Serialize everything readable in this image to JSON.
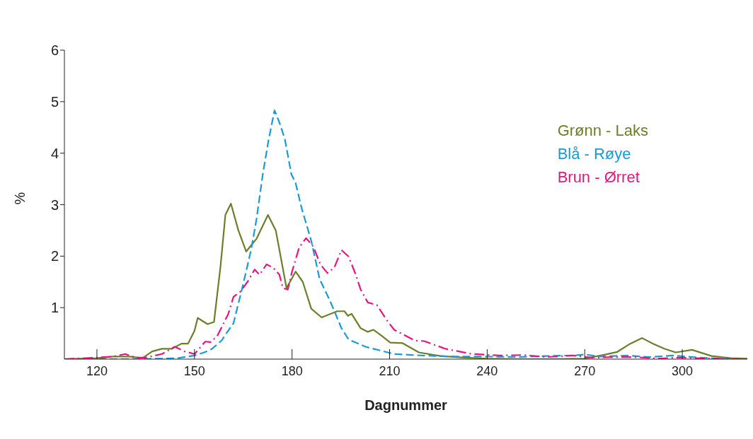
{
  "chart_data": {
    "type": "line",
    "xlabel": "Dagnummer",
    "ylabel": "%",
    "xlim": [
      110,
      320
    ],
    "xticks": [
      120,
      150,
      180,
      210,
      240,
      270,
      300
    ],
    "ylim": [
      0,
      6
    ],
    "yticks": [
      1,
      2,
      3,
      4,
      5,
      6
    ],
    "grid": false,
    "legend": "top right",
    "marker": "none",
    "series": [
      {
        "name": "Grønn - Laks",
        "color": "#6b7f2a",
        "line_style": "solid",
        "x": [
          110,
          120,
          125,
          130,
          134,
          137,
          140,
          143,
          146,
          148,
          150,
          151,
          154,
          156,
          158,
          159.5,
          161.2,
          163.5,
          165.9,
          169.1,
          172.6,
          175,
          178.3,
          181.1,
          183.3,
          185.9,
          189.1,
          193.9,
          196.1,
          197.2,
          198.3,
          201.1,
          203.3,
          205,
          207.6,
          210.2,
          214,
          219,
          225.6,
          233,
          240,
          250,
          260,
          270,
          276.5,
          280,
          284,
          287.6,
          291,
          294.6,
          298,
          303,
          309,
          315,
          320
        ],
        "values": [
          0,
          0.02,
          0.05,
          0.05,
          0.02,
          0.15,
          0.2,
          0.2,
          0.3,
          0.3,
          0.55,
          0.8,
          0.68,
          0.72,
          1.8,
          2.8,
          3.02,
          2.5,
          2.09,
          2.34,
          2.8,
          2.5,
          1.38,
          1.7,
          1.5,
          0.98,
          0.81,
          0.93,
          0.93,
          0.84,
          0.88,
          0.6,
          0.53,
          0.57,
          0.45,
          0.32,
          0.31,
          0.13,
          0.06,
          0.03,
          0.01,
          0,
          0,
          0.01,
          0.09,
          0.14,
          0.3,
          0.41,
          0.3,
          0.2,
          0.13,
          0.18,
          0.06,
          0.02,
          0.01
        ]
      },
      {
        "name": "Blå - Røye",
        "color": "#1a9ad6",
        "line_style": "dashed",
        "x": [
          110,
          120,
          130,
          140,
          145,
          150,
          153,
          155.4,
          158.3,
          162,
          164.8,
          167.4,
          169.1,
          171,
          172.8,
          174.6,
          176.1,
          177.8,
          179.8,
          181.1,
          183,
          185.9,
          188.5,
          191.7,
          195.2,
          197.4,
          202.6,
          211.3,
          220,
          230,
          240,
          250,
          258,
          266.3,
          270,
          275,
          283,
          290,
          297,
          305,
          315,
          320
        ],
        "values": [
          0,
          0,
          0,
          0.01,
          0.02,
          0.07,
          0.13,
          0.2,
          0.36,
          0.7,
          1.41,
          2.12,
          2.73,
          3.59,
          4.26,
          4.83,
          4.6,
          4.27,
          3.59,
          3.42,
          2.92,
          2.3,
          1.55,
          1.13,
          0.6,
          0.38,
          0.24,
          0.1,
          0.07,
          0.05,
          0.05,
          0.04,
          0.06,
          0.07,
          0.09,
          0.05,
          0.07,
          0.04,
          0.07,
          0.03,
          0,
          0
        ]
      },
      {
        "name": "Brun - Ørret",
        "color": "#e6157f",
        "line_style": "dashdot",
        "x": [
          110,
          120,
          125,
          128.7,
          132,
          135,
          140,
          143.9,
          147,
          150,
          153.3,
          155,
          157,
          160.4,
          162,
          164.1,
          166.3,
          168.5,
          170,
          172.2,
          174.3,
          176.1,
          177.2,
          178.7,
          180,
          182.2,
          184.3,
          186.5,
          188.7,
          190.9,
          193,
          195.2,
          197.4,
          199.6,
          201.1,
          203.3,
          206.1,
          209.1,
          211.4,
          217.8,
          220.6,
          227.2,
          235.2,
          243.9,
          251,
          258.3,
          266.3,
          272,
          280,
          285.6,
          292.8,
          298,
          309,
          320
        ],
        "values": [
          0,
          0.03,
          0.05,
          0.1,
          0.03,
          0.03,
          0.1,
          0.24,
          0.15,
          0.1,
          0.34,
          0.33,
          0.45,
          0.88,
          1.21,
          1.31,
          1.5,
          1.74,
          1.64,
          1.84,
          1.77,
          1.64,
          1.38,
          1.35,
          1.7,
          2.17,
          2.35,
          2.19,
          1.84,
          1.67,
          1.78,
          2.12,
          1.99,
          1.64,
          1.35,
          1.1,
          1.05,
          0.76,
          0.57,
          0.36,
          0.35,
          0.2,
          0.1,
          0.07,
          0.08,
          0.04,
          0.07,
          0.03,
          0.04,
          0.04,
          0.01,
          0.03,
          0.01,
          0
        ]
      }
    ]
  }
}
